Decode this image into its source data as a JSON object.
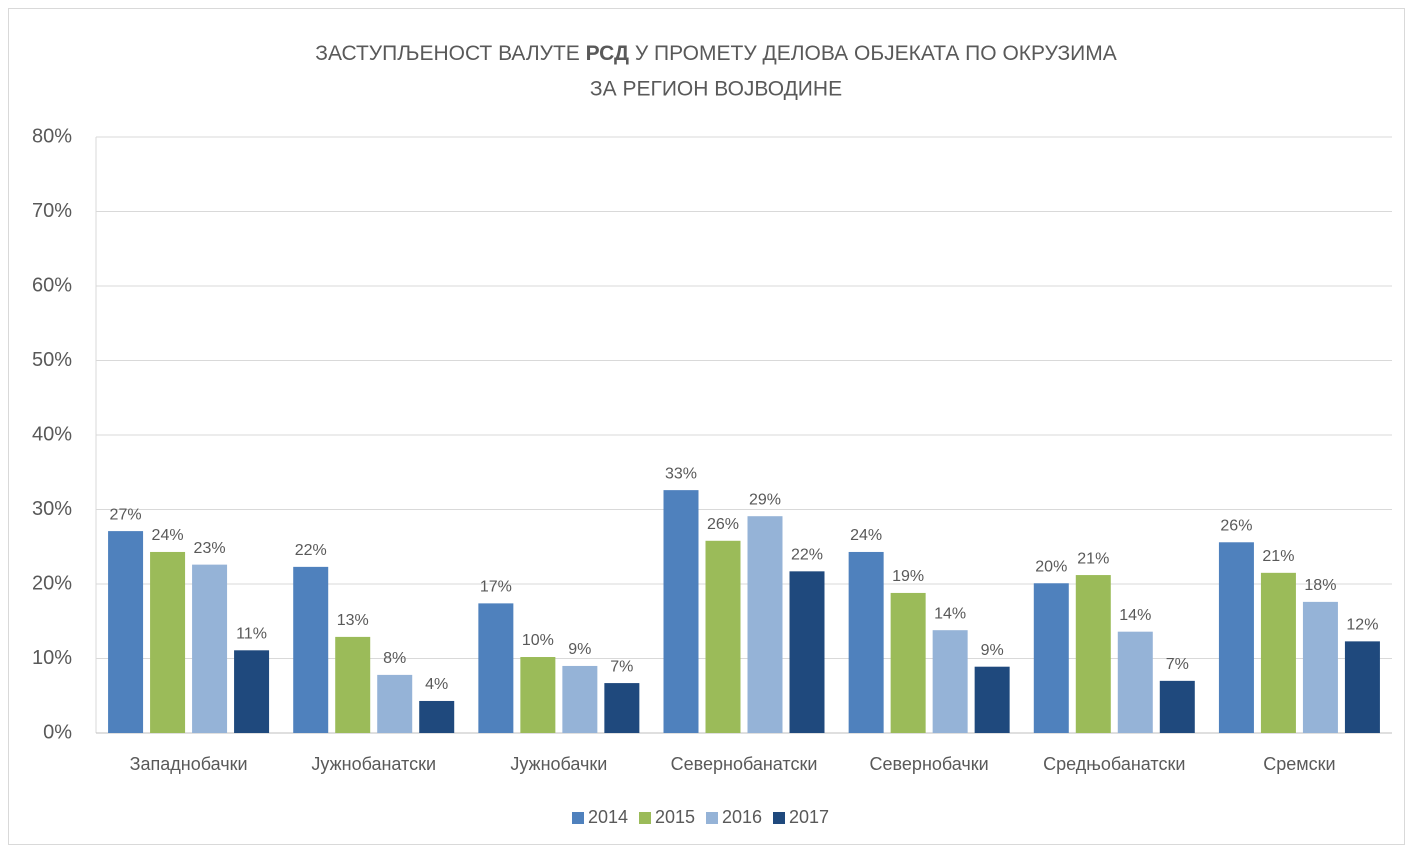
{
  "chart_data": {
    "type": "bar",
    "title": [
      [
        "ЗАСТУПЉЕНОСТ ВАЛУТЕ",
        "РСД",
        "У ПРОМЕТУ ДЕЛОВА ОБЈЕКАТА ПО ОКРУЗИМА"
      ],
      [
        "ЗА РЕГИОН ВОЈВОДИНЕ"
      ]
    ],
    "categories": [
      "Западнобачки",
      "Јужнобанатски",
      "Јужнобачки",
      "Севернобанатски",
      "Севернобачки",
      "Средњобанатски",
      "Сремски"
    ],
    "series": [
      {
        "name": "2014",
        "color": "#4f81bd",
        "values": [
          27.1,
          22.3,
          17.4,
          32.6,
          24.3,
          20.1,
          25.6
        ],
        "value_labels": [
          "27%",
          "22%",
          "17%",
          "33%",
          "24%",
          "20%",
          "26%"
        ]
      },
      {
        "name": "2015",
        "color": "#9bbb59",
        "values": [
          24.3,
          12.9,
          10.2,
          25.8,
          18.8,
          21.2,
          21.5
        ],
        "value_labels": [
          "24%",
          "13%",
          "10%",
          "26%",
          "19%",
          "21%",
          "21%"
        ]
      },
      {
        "name": "2016",
        "color": "#95b3d7",
        "values": [
          22.6,
          7.8,
          9.0,
          29.1,
          13.8,
          13.6,
          17.6
        ],
        "value_labels": [
          "23%",
          "8%",
          "9%",
          "29%",
          "14%",
          "14%",
          "18%"
        ]
      },
      {
        "name": "2017",
        "color": "#1f497d",
        "values": [
          11.1,
          4.3,
          6.7,
          21.7,
          8.9,
          7.0,
          12.3
        ],
        "value_labels": [
          "11%",
          "4%",
          "7%",
          "22%",
          "9%",
          "7%",
          "12%"
        ]
      }
    ],
    "ylim": [
      0,
      80
    ],
    "yticks": [
      {
        "value": 0,
        "label": "0%"
      },
      {
        "value": 10,
        "label": "10%"
      },
      {
        "value": 20,
        "label": "20%"
      },
      {
        "value": 30,
        "label": "30%"
      },
      {
        "value": 40,
        "label": "40%"
      },
      {
        "value": 50,
        "label": "50%"
      },
      {
        "value": 60,
        "label": "60%"
      },
      {
        "value": 70,
        "label": "70%"
      },
      {
        "value": 80,
        "label": "80%"
      }
    ],
    "grid": true,
    "legend": "bottom"
  }
}
